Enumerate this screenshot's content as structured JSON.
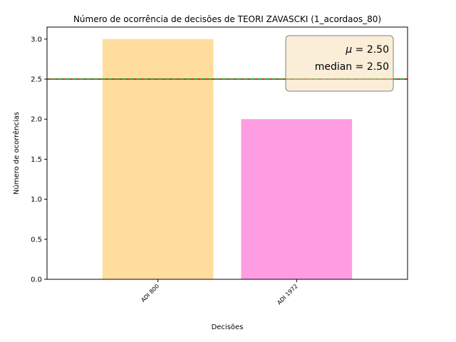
{
  "colors": {
    "bar_colors": [
      "#ffdd9e",
      "#ff9de2"
    ],
    "mean_line": "#d62728",
    "median_line": "#2ca02c",
    "stats_box_fill": "#f5deb3",
    "stats_box_edge": "#808080"
  },
  "chart_data": {
    "type": "bar",
    "title": "Número de ocorrência de decisões de TEORI ZAVASCKI (1_acordaos_80)",
    "xlabel": "Decisões",
    "ylabel": "Número de ocorrências",
    "categories": [
      "ADI 800",
      "ADI 1972"
    ],
    "values": [
      3,
      2
    ],
    "ylim": [
      0,
      3.15
    ],
    "yticks": [
      "0.0",
      "0.5",
      "1.0",
      "1.5",
      "2.0",
      "2.5",
      "3.0"
    ],
    "ytick_values": [
      0,
      0.5,
      1.0,
      1.5,
      2.0,
      2.5,
      3.0
    ],
    "grid": false,
    "mean_value": 2.5,
    "median_value": 2.5,
    "stats_box": {
      "mean_symbol": "μ",
      "mean_text": " = 2.50",
      "median_text": "median = 2.50",
      "placement": "top-right"
    }
  }
}
